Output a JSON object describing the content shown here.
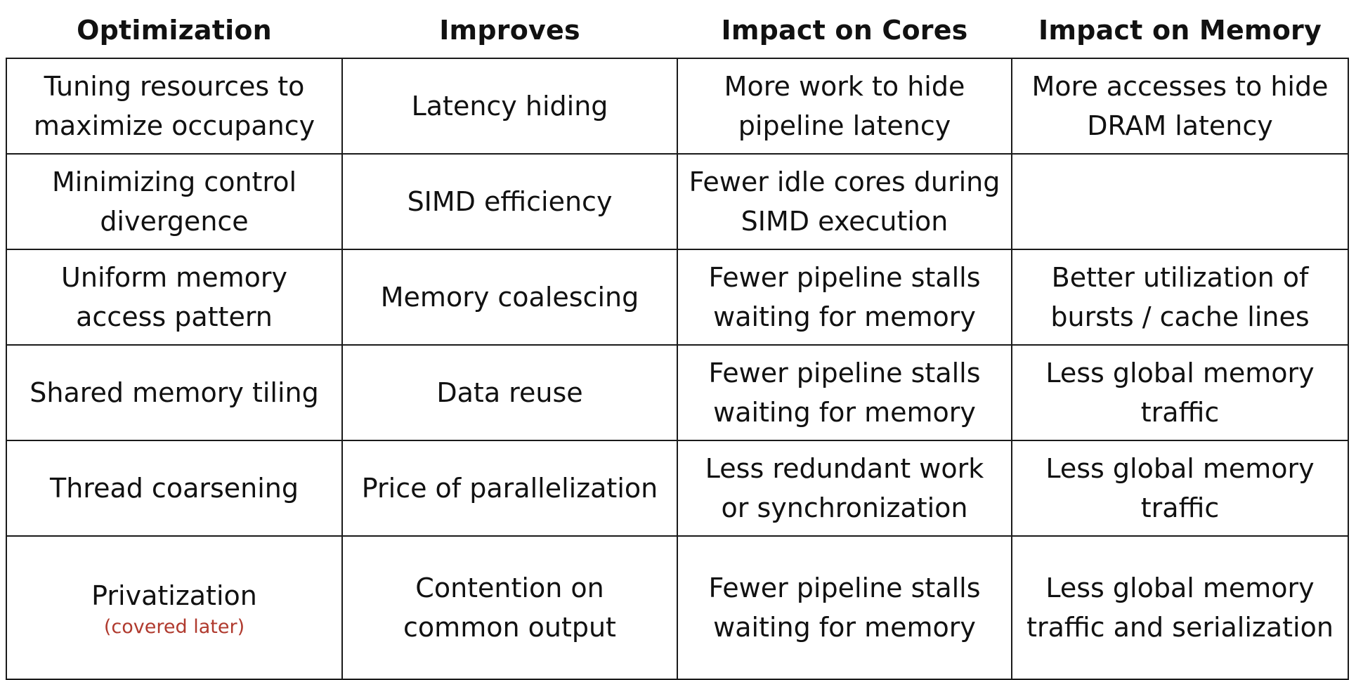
{
  "table": {
    "headers": [
      "Optimization",
      "Improves",
      "Impact on Cores",
      "Impact on Memory"
    ],
    "rows": [
      {
        "optimization": "Tuning resources to\nmaximize occupancy",
        "note": "",
        "improves": "Latency hiding",
        "cores": "More work to hide\npipeline latency",
        "memory": "More accesses to hide\nDRAM latency"
      },
      {
        "optimization": "Minimizing control\ndivergence",
        "note": "",
        "improves": "SIMD efficiency",
        "cores": "Fewer idle cores during\nSIMD execution",
        "memory": ""
      },
      {
        "optimization": "Uniform memory\naccess pattern",
        "note": "",
        "improves": "Memory coalescing",
        "cores": "Fewer pipeline stalls\nwaiting for memory",
        "memory": "Better utilization of\nbursts / cache lines"
      },
      {
        "optimization": "Shared memory tiling",
        "note": "",
        "improves": "Data reuse",
        "cores": "Fewer pipeline stalls\nwaiting for memory",
        "memory": "Less global memory\ntraffic"
      },
      {
        "optimization": "Thread coarsening",
        "note": "",
        "improves": "Price of parallelization",
        "cores": "Less redundant work\nor synchronization",
        "memory": "Less global memory\ntraffic"
      },
      {
        "optimization": "Privatization",
        "note": "(covered later)",
        "improves": "Contention on\ncommon output",
        "cores": "Fewer pipeline stalls\nwaiting for memory",
        "memory": "Less global memory\ntraffic and serialization"
      }
    ]
  },
  "colors": {
    "border": "#1a1a1a",
    "text": "#111111",
    "note": "#b03a2e",
    "background": "#ffffff"
  }
}
